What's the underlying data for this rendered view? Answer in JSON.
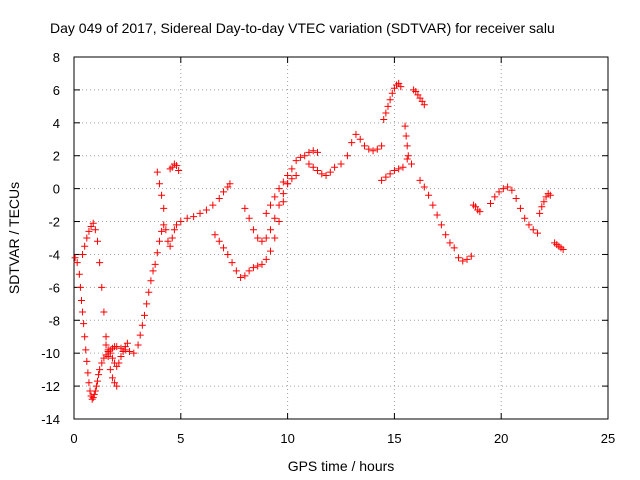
{
  "chart_data": {
    "type": "scatter",
    "title": "Day 049 of 2017, Sidereal Day-to-day VTEC variation (SDTVAR) for receiver salu",
    "xlabel": "GPS time / hours",
    "ylabel": "SDTVAR / TECUs",
    "xlim": [
      0,
      25
    ],
    "ylim": [
      -14,
      8
    ],
    "xticks": [
      "0",
      "5",
      "10",
      "15",
      "20",
      "25"
    ],
    "yticks": [
      "-14",
      "-12",
      "-10",
      "-8",
      "-6",
      "-4",
      "-2",
      "0",
      "2",
      "4",
      "6",
      "8"
    ],
    "grid": true,
    "marker": "plus",
    "color": "#ff0000",
    "series": [
      {
        "x": [
          0.05,
          0.15,
          0.25,
          0.3,
          0.35,
          0.4,
          0.45,
          0.5,
          0.55,
          0.6,
          0.65,
          0.7,
          0.75,
          0.8,
          0.85,
          0.9,
          0.95,
          1.0,
          1.05,
          1.1,
          1.15,
          1.2,
          1.3,
          1.4,
          1.5,
          1.6,
          1.7,
          1.8,
          1.9,
          2.0,
          2.2,
          2.4,
          2.6,
          2.8,
          3.0,
          3.1,
          3.2,
          3.3,
          3.4,
          3.5,
          3.6,
          3.7,
          3.8,
          3.9,
          4.0,
          4.1,
          4.2,
          4.3,
          4.4,
          4.5,
          4.6,
          4.7,
          4.8,
          5.0,
          5.3,
          5.6,
          5.9,
          6.2,
          6.5,
          6.8,
          7.0,
          7.2,
          7.3
        ],
        "y": [
          -4.2,
          -4.5,
          -5.2,
          -6.0,
          -6.8,
          -7.5,
          -8.2,
          -9.0,
          -9.8,
          -10.5,
          -11.2,
          -11.8,
          -12.3,
          -12.6,
          -12.8,
          -12.7,
          -12.5,
          -12.3,
          -12.0,
          -11.7,
          -11.3,
          -11.0,
          -10.6,
          -10.3,
          -10.1,
          -9.9,
          -9.8,
          -9.7,
          -9.6,
          -9.6,
          -9.7,
          -9.8,
          -9.9,
          -10.0,
          -9.5,
          -8.9,
          -8.3,
          -7.7,
          -7.0,
          -6.3,
          -5.6,
          -5.0,
          -4.6,
          -3.9,
          -3.2,
          -2.6,
          -2.2,
          -2.5,
          -3.2,
          -3.5,
          -3.0,
          -2.5,
          -2.2,
          -2.0,
          -1.8,
          -1.7,
          -1.5,
          -1.3,
          -1.0,
          -0.6,
          -0.2,
          0.1,
          0.3
        ]
      },
      {
        "x": [
          0.4,
          0.5,
          0.6,
          0.7,
          0.8,
          0.9,
          1.0,
          1.1,
          1.2,
          1.3,
          1.4,
          1.5,
          1.6,
          1.7,
          1.8,
          1.9,
          2.0
        ],
        "y": [
          -4.0,
          -3.5,
          -3.0,
          -2.6,
          -2.3,
          -2.1,
          -2.5,
          -3.2,
          -4.5,
          -6.0,
          -7.5,
          -9.0,
          -10.2,
          -11.0,
          -11.5,
          -11.8,
          -12.0
        ]
      },
      {
        "x": [
          1.5,
          1.6,
          1.7,
          1.8,
          1.9,
          2.0,
          2.1,
          2.2,
          2.3,
          2.4,
          2.5
        ],
        "y": [
          -9.5,
          -9.8,
          -10.0,
          -10.3,
          -10.6,
          -10.8,
          -10.6,
          -10.2,
          -9.9,
          -9.6,
          -9.4
        ]
      },
      {
        "x": [
          3.9,
          4.0,
          4.1,
          4.2
        ],
        "y": [
          1.0,
          0.3,
          -0.4,
          -1.2
        ]
      },
      {
        "x": [
          4.5,
          4.6,
          4.7,
          4.8,
          4.9
        ],
        "y": [
          1.2,
          1.3,
          1.5,
          1.4,
          1.1
        ]
      },
      {
        "x": [
          6.6,
          6.8,
          7.0,
          7.2,
          7.4,
          7.6,
          7.8,
          8.0,
          8.2,
          8.4,
          8.6,
          8.8,
          9.0,
          9.2,
          9.4,
          9.6,
          9.8,
          10.0,
          10.2,
          10.4,
          10.6,
          10.8,
          11.0,
          11.2,
          11.4
        ],
        "y": [
          -2.8,
          -3.2,
          -3.6,
          -4.0,
          -4.5,
          -5.0,
          -5.4,
          -5.3,
          -5.0,
          -4.8,
          -4.7,
          -4.6,
          -4.3,
          -3.8,
          -3.0,
          -2.0,
          -0.8,
          0.3,
          1.2,
          1.7,
          1.9,
          2.0,
          2.2,
          2.3,
          2.2
        ]
      },
      {
        "x": [
          8.0,
          8.2,
          8.4,
          8.6,
          8.8,
          9.0,
          9.2,
          9.4,
          9.6,
          9.8,
          10.0,
          10.2,
          10.4
        ],
        "y": [
          -1.2,
          -1.8,
          -2.5,
          -3.0,
          -3.2,
          -3.0,
          -2.5,
          -1.8,
          -1.0,
          -0.3,
          0.3,
          0.6,
          0.8
        ]
      },
      {
        "x": [
          9.0,
          9.2,
          9.4,
          9.6,
          9.8,
          10.0
        ],
        "y": [
          -1.5,
          -1.0,
          -0.5,
          0.0,
          0.4,
          0.8
        ]
      },
      {
        "x": [
          11.0,
          11.2,
          11.4,
          11.6,
          11.8,
          12.0,
          12.2,
          12.5,
          12.8,
          13.0,
          13.2,
          13.4,
          13.6,
          13.8,
          14.0,
          14.2,
          14.4
        ],
        "y": [
          1.5,
          1.3,
          1.1,
          0.9,
          0.8,
          1.0,
          1.3,
          1.5,
          2.0,
          2.8,
          3.3,
          3.0,
          2.6,
          2.4,
          2.3,
          2.4,
          2.6
        ]
      },
      {
        "x": [
          14.5,
          14.6,
          14.7,
          14.8,
          14.9,
          15.0,
          15.1,
          15.2,
          15.3
        ],
        "y": [
          4.2,
          4.6,
          5.0,
          5.4,
          5.8,
          6.1,
          6.3,
          6.4,
          6.2
        ]
      },
      {
        "x": [
          14.4,
          14.6,
          14.8,
          15.0,
          15.2,
          15.4,
          15.6,
          15.8
        ],
        "y": [
          0.5,
          0.7,
          0.9,
          1.1,
          1.2,
          1.3,
          1.8,
          1.5
        ]
      },
      {
        "x": [
          15.5,
          15.55,
          15.6,
          15.65
        ],
        "y": [
          3.8,
          3.2,
          2.6,
          2.0
        ]
      },
      {
        "x": [
          15.9,
          16.0,
          16.1,
          16.2,
          16.3,
          16.4
        ],
        "y": [
          6.0,
          5.9,
          5.7,
          5.5,
          5.3,
          5.1
        ]
      },
      {
        "x": [
          16.2,
          16.4,
          16.6,
          16.8,
          17.0,
          17.2,
          17.4,
          17.6,
          17.8,
          18.0,
          18.2,
          18.4,
          18.6
        ],
        "y": [
          0.5,
          0.1,
          -0.4,
          -1.0,
          -1.6,
          -2.2,
          -2.8,
          -3.3,
          -3.6,
          -4.2,
          -4.4,
          -4.3,
          -4.1
        ]
      },
      {
        "x": [
          18.7,
          18.8,
          18.9,
          19.0
        ],
        "y": [
          -1.0,
          -1.1,
          -1.3,
          -1.4
        ]
      },
      {
        "x": [
          19.5,
          19.7,
          19.9,
          20.1,
          20.3,
          20.5,
          20.7,
          20.9,
          21.1,
          21.3,
          21.5,
          21.7
        ],
        "y": [
          -0.9,
          -0.5,
          -0.2,
          0.0,
          0.1,
          -0.1,
          -0.6,
          -1.2,
          -1.8,
          -2.2,
          -2.5,
          -2.7
        ]
      },
      {
        "x": [
          21.8,
          21.9,
          22.0,
          22.1,
          22.2,
          22.3
        ],
        "y": [
          -1.5,
          -1.1,
          -0.8,
          -0.5,
          -0.3,
          -0.4
        ]
      },
      {
        "x": [
          22.5,
          22.6,
          22.7,
          22.8,
          22.9
        ],
        "y": [
          -3.3,
          -3.4,
          -3.5,
          -3.6,
          -3.7
        ]
      }
    ]
  }
}
